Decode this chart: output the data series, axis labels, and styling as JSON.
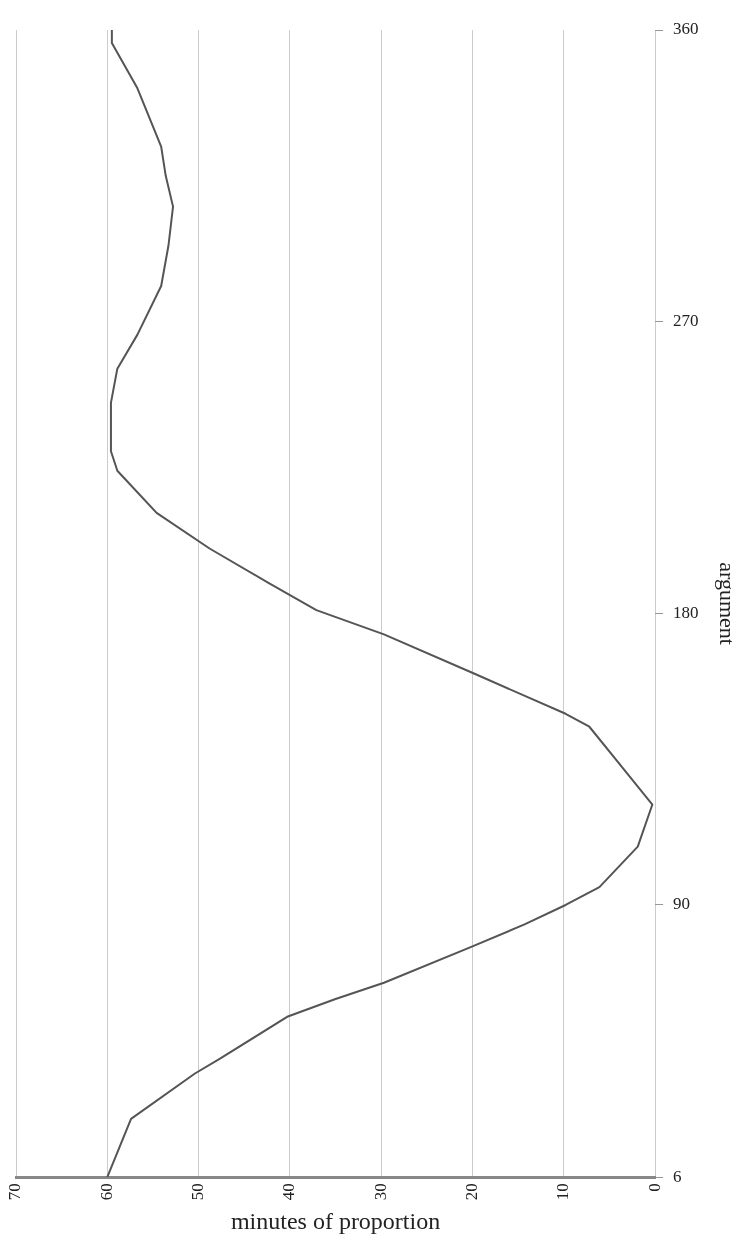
{
  "chart_data": {
    "type": "line",
    "xlabel": "minutes of proportion",
    "ylabel": "argument",
    "series": [
      {
        "color": "#555555",
        "x": [
          60,
          57.4,
          50.4,
          47.7,
          40.3,
          35,
          29.7,
          20.2,
          14.3,
          9.8,
          6.1,
          1.9,
          0.3,
          7.2,
          9.8,
          19.9,
          29.7,
          37.1,
          42.4,
          48.8,
          54.6,
          58.9,
          59.6,
          59.6,
          58.9,
          56.7,
          54.1,
          53.3,
          52.8,
          53.6,
          54.1,
          56.7,
          59.5,
          59.5
        ],
        "values": [
          6,
          24,
          38,
          42.5,
          55.5,
          61,
          66,
          77,
          84,
          90,
          95.5,
          108,
          121,
          145,
          149,
          161.5,
          173.5,
          181,
          189.5,
          200,
          211,
          224,
          230,
          245,
          255.5,
          266,
          281,
          293.5,
          305.5,
          315,
          324,
          342,
          356,
          360
        ]
      }
    ],
    "xlim": [
      70,
      0
    ],
    "xticks": [
      70,
      60,
      50,
      40,
      30,
      20,
      10,
      0
    ],
    "ylim": [
      6,
      360
    ],
    "yticks": [
      6,
      90,
      180,
      270,
      360
    ],
    "grid": "x",
    "legend": false,
    "marker": "none",
    "line_style": "solid"
  }
}
